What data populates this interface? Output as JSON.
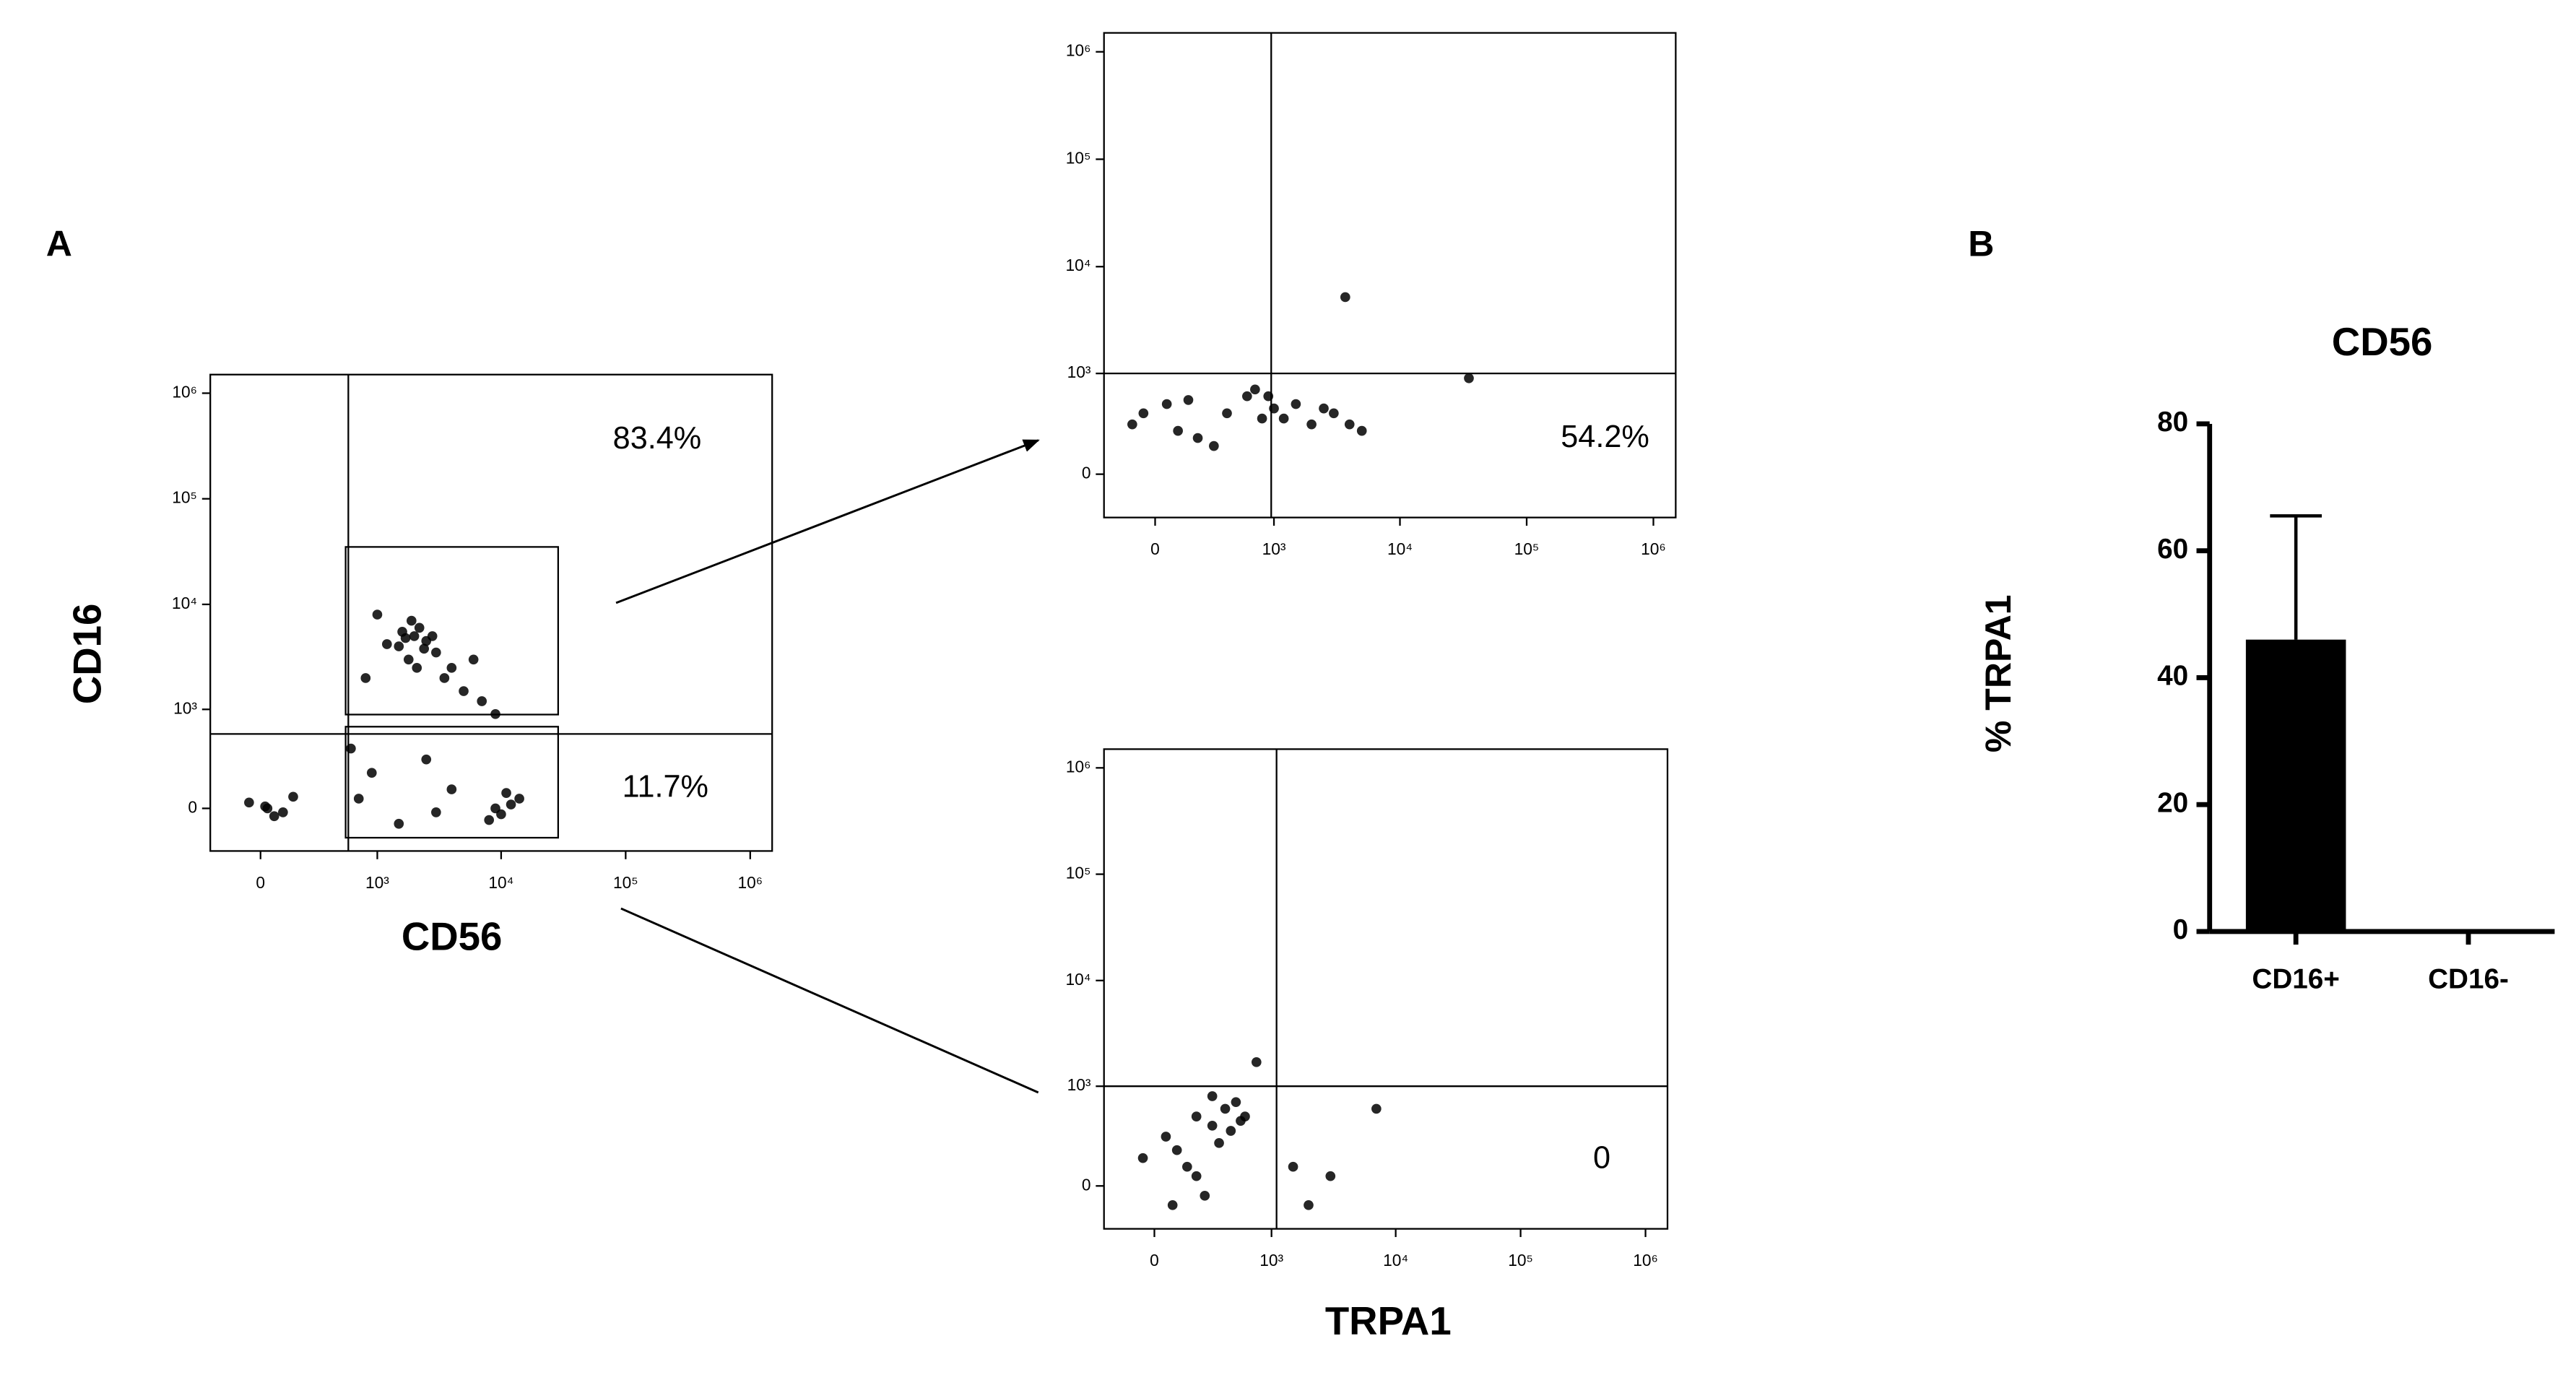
{
  "panels": {
    "a": "A",
    "b": "B"
  },
  "chart_data": [
    {
      "type": "scatter",
      "scale": "biexponential",
      "xlabel": "CD56",
      "ylabel": "CD16",
      "xlim": [
        -250,
        1500000
      ],
      "ylim": [
        -250,
        1500000
      ],
      "xticks": [
        0,
        {
          "value": 1000,
          "label": "10³"
        },
        {
          "value": 10000,
          "label": "10⁴"
        },
        {
          "value": 100000,
          "label": "10⁵"
        },
        {
          "value": 1000000,
          "label": "10⁶"
        }
      ],
      "yticks": [
        0,
        {
          "value": 1000,
          "label": "10³"
        },
        {
          "value": 10000,
          "label": "10⁴"
        },
        {
          "value": 100000,
          "label": "10⁵"
        },
        {
          "value": 1000000,
          "label": "10⁶"
        }
      ],
      "quadrant": {
        "x": 570,
        "y": 570
      },
      "gates": [
        {
          "x": [
            540,
            28700
          ],
          "y": [
            890,
            35000
          ]
        },
        {
          "x": [
            540,
            28700
          ],
          "y": [
            -160,
            675
          ]
        }
      ],
      "annotations": [
        "83.4%",
        "11.7%"
      ],
      "color": "#000000",
      "x": [
        1500,
        2000,
        2500,
        1800,
        2200,
        3000,
        1200,
        1600,
        2800,
        2100,
        1900,
        2400,
        1700,
        3500,
        5000,
        7000,
        9000,
        4000,
        6000,
        1000,
        800,
        12000,
        10000,
        14000,
        9000,
        11000,
        8000,
        20,
        60,
        -50,
        100,
        150,
        30,
        900,
        1500,
        2500,
        4000,
        600,
        3000,
        700
      ],
      "y": [
        4000,
        5000,
        4500,
        3000,
        6000,
        3500,
        4200,
        5500,
        5000,
        2500,
        7000,
        3800,
        4800,
        2000,
        1500,
        1200,
        900,
        2500,
        3000,
        8000,
        2000,
        20,
        -30,
        50,
        0,
        80,
        -60,
        10,
        -40,
        30,
        -20,
        60,
        0,
        200,
        -80,
        300,
        100,
        400,
        -20,
        50
      ]
    },
    {
      "type": "scatter",
      "scale": "biexponential",
      "xlim": [
        -250,
        1500000
      ],
      "ylim": [
        -250,
        1500000
      ],
      "xticks": [
        0,
        {
          "value": 1000,
          "label": "10³"
        },
        {
          "value": 10000,
          "label": "10⁴"
        },
        {
          "value": 100000,
          "label": "10⁵"
        },
        {
          "value": 1000000,
          "label": "10⁶"
        }
      ],
      "yticks": [
        0,
        {
          "value": 1000,
          "label": "10³"
        },
        {
          "value": 10000,
          "label": "10⁴"
        },
        {
          "value": 100000,
          "label": "10⁵"
        },
        {
          "value": 1000000,
          "label": "10⁶"
        }
      ],
      "quadrant": {
        "x": 950,
        "y": 1000
      },
      "annotations": [
        "54.2%"
      ],
      "color": "#000000",
      "x": [
        -100,
        50,
        200,
        400,
        600,
        800,
        1000,
        1500,
        2000,
        3000,
        5000,
        150,
        300,
        700,
        1200,
        2500,
        4000,
        -50,
        100,
        900,
        3700,
        35000
      ],
      "y": [
        300,
        500,
        200,
        400,
        600,
        350,
        450,
        500,
        300,
        400,
        250,
        550,
        150,
        700,
        350,
        450,
        300,
        400,
        250,
        600,
        5200,
        900
      ]
    },
    {
      "type": "scatter",
      "scale": "biexponential",
      "xlabel": "TRPA1",
      "xlim": [
        -250,
        1500000
      ],
      "ylim": [
        -250,
        1500000
      ],
      "xticks": [
        0,
        {
          "value": 1000,
          "label": "10³"
        },
        {
          "value": 10000,
          "label": "10⁴"
        },
        {
          "value": 100000,
          "label": "10⁵"
        },
        {
          "value": 1000000,
          "label": "10⁶"
        }
      ],
      "yticks": [
        0,
        {
          "value": 1000,
          "label": "10³"
        },
        {
          "value": 10000,
          "label": "10⁴"
        },
        {
          "value": 100000,
          "label": "10⁵"
        },
        {
          "value": 1000000,
          "label": "10⁶"
        }
      ],
      "quadrant": {
        "x": 1100,
        "y": 1000
      },
      "annotations": [
        "0"
      ],
      "color": "#000000",
      "x": [
        50,
        100,
        200,
        300,
        400,
        500,
        600,
        150,
        250,
        350,
        -50,
        450,
        80,
        550,
        200,
        300,
        1500,
        3000,
        7000,
        2000,
        750
      ],
      "y": [
        300,
        200,
        500,
        400,
        600,
        700,
        500,
        100,
        -50,
        250,
        150,
        350,
        -100,
        450,
        50,
        800,
        100,
        50,
        600,
        -100,
        1700
      ]
    },
    {
      "type": "bar",
      "title": "CD56",
      "ylabel": "% TRPA1",
      "categories": [
        "CD16+",
        "CD16-"
      ],
      "values": [
        46,
        0
      ],
      "errors": [
        19.5,
        null
      ],
      "color": "#000000",
      "ylim": [
        0,
        80
      ],
      "yticks": [
        0,
        20,
        40,
        60,
        80
      ]
    }
  ]
}
